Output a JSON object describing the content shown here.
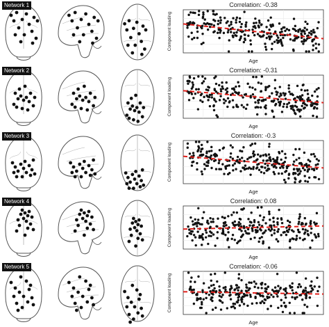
{
  "networks": [
    {
      "label": "Network 1",
      "correlation_text": "Correlation: -0.38"
    },
    {
      "label": "Network 2",
      "correlation_text": "Correlation: -0.31"
    },
    {
      "label": "Network 3",
      "correlation_text": "Correlation: -0.3"
    },
    {
      "label": "Network 4",
      "correlation_text": "Correlation: 0.08"
    },
    {
      "label": "Network 5",
      "correlation_text": "Correlation: -0.06"
    }
  ],
  "colors": {
    "points": "#111111",
    "trend": "#e0201b",
    "brain_outline": "#555555",
    "node": "#111111"
  },
  "chart_data": [
    {
      "type": "scatter",
      "title": "Correlation: -0.38",
      "ylabel": "Component loading",
      "xlabel": "Age",
      "xlim": [
        20,
        90
      ],
      "correlation": -0.38,
      "trend_line": {
        "style": "dashed",
        "color": "#e0201b"
      },
      "grid": true
    },
    {
      "type": "scatter",
      "title": "Correlation: -0.31",
      "ylabel": "Component loading",
      "xlabel": "Age",
      "xlim": [
        20,
        90
      ],
      "correlation": -0.31,
      "trend_line": {
        "style": "dashed",
        "color": "#e0201b"
      },
      "grid": true
    },
    {
      "type": "scatter",
      "title": "Correlation: -0.3",
      "ylabel": "Component loading",
      "xlabel": "Age",
      "xlim": [
        20,
        90
      ],
      "correlation": -0.3,
      "trend_line": {
        "style": "dashed",
        "color": "#e0201b"
      },
      "grid": true
    },
    {
      "type": "scatter",
      "title": "Correlation: 0.08",
      "ylabel": "Component loading",
      "xlabel": "Age",
      "xlim": [
        20,
        90
      ],
      "correlation": 0.08,
      "trend_line": {
        "style": "dashed",
        "color": "#e0201b"
      },
      "grid": true
    },
    {
      "type": "scatter",
      "title": "Correlation: -0.06",
      "ylabel": "Component loading",
      "xlabel": "Age",
      "xlim": [
        20,
        90
      ],
      "correlation": -0.06,
      "trend_line": {
        "style": "dashed",
        "color": "#e0201b"
      },
      "grid": true
    }
  ]
}
